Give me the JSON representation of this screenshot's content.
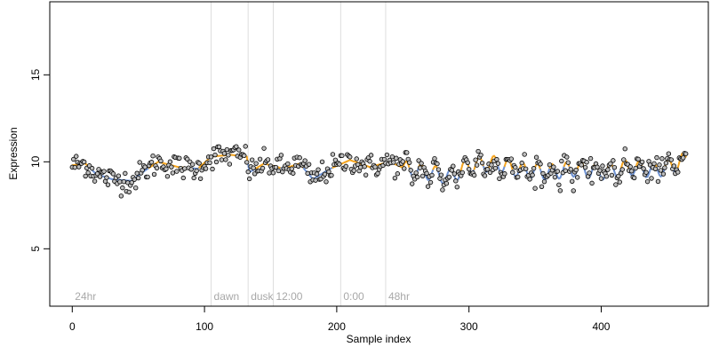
{
  "colors": {
    "background": "#ffffff",
    "axis": "#000000",
    "point_fill": "#bdbdbd",
    "point_stroke": "#000000",
    "fit_above": "#f5a623",
    "fit_below": "#6f93d3",
    "segment_line": "#dddddd",
    "annotation_text": "#a8a8a8"
  },
  "chart_data": {
    "type": "scatter",
    "xlabel": "Sample index",
    "ylabel": "Expression",
    "xlim": [
      -17,
      481
    ],
    "ylim": [
      1.7,
      19.2
    ],
    "x_ticks": [
      0,
      100,
      200,
      300,
      400
    ],
    "y_ticks": [
      5,
      10,
      15
    ],
    "grid": false,
    "segments": [
      {
        "x": 0,
        "label": "24hr"
      },
      {
        "x": 105,
        "label": "dawn"
      },
      {
        "x": 133,
        "label": "dusk"
      },
      {
        "x": 152,
        "label": "12:00"
      },
      {
        "x": 203,
        "label": "0:00"
      },
      {
        "x": 237,
        "label": "48hr"
      }
    ],
    "n_points": 465,
    "baseline": 9.65,
    "fit_keypoints": [
      [
        0,
        9.8
      ],
      [
        10,
        9.9
      ],
      [
        18,
        9.3
      ],
      [
        30,
        9.0
      ],
      [
        45,
        8.9
      ],
      [
        55,
        9.5
      ],
      [
        65,
        10.0
      ],
      [
        80,
        9.7
      ],
      [
        95,
        9.6
      ],
      [
        105,
        10.3
      ],
      [
        120,
        10.4
      ],
      [
        132,
        10.3
      ],
      [
        134,
        9.4
      ],
      [
        145,
        9.9
      ],
      [
        160,
        9.6
      ],
      [
        172,
        9.9
      ],
      [
        182,
        9.0
      ],
      [
        195,
        9.6
      ],
      [
        210,
        10.1
      ],
      [
        225,
        9.7
      ],
      [
        240,
        10.0
      ],
      [
        255,
        9.5
      ],
      [
        270,
        9.4
      ],
      [
        285,
        9.1
      ],
      [
        300,
        9.8
      ],
      [
        320,
        9.9
      ],
      [
        340,
        9.5
      ],
      [
        360,
        9.4
      ],
      [
        380,
        9.6
      ],
      [
        400,
        9.4
      ],
      [
        420,
        9.7
      ],
      [
        440,
        9.5
      ],
      [
        455,
        9.8
      ],
      [
        465,
        10.2
      ]
    ],
    "oscillation": {
      "start": 250,
      "period": 11,
      "amplitude": 0.45
    },
    "noise_sd": 0.35
  }
}
